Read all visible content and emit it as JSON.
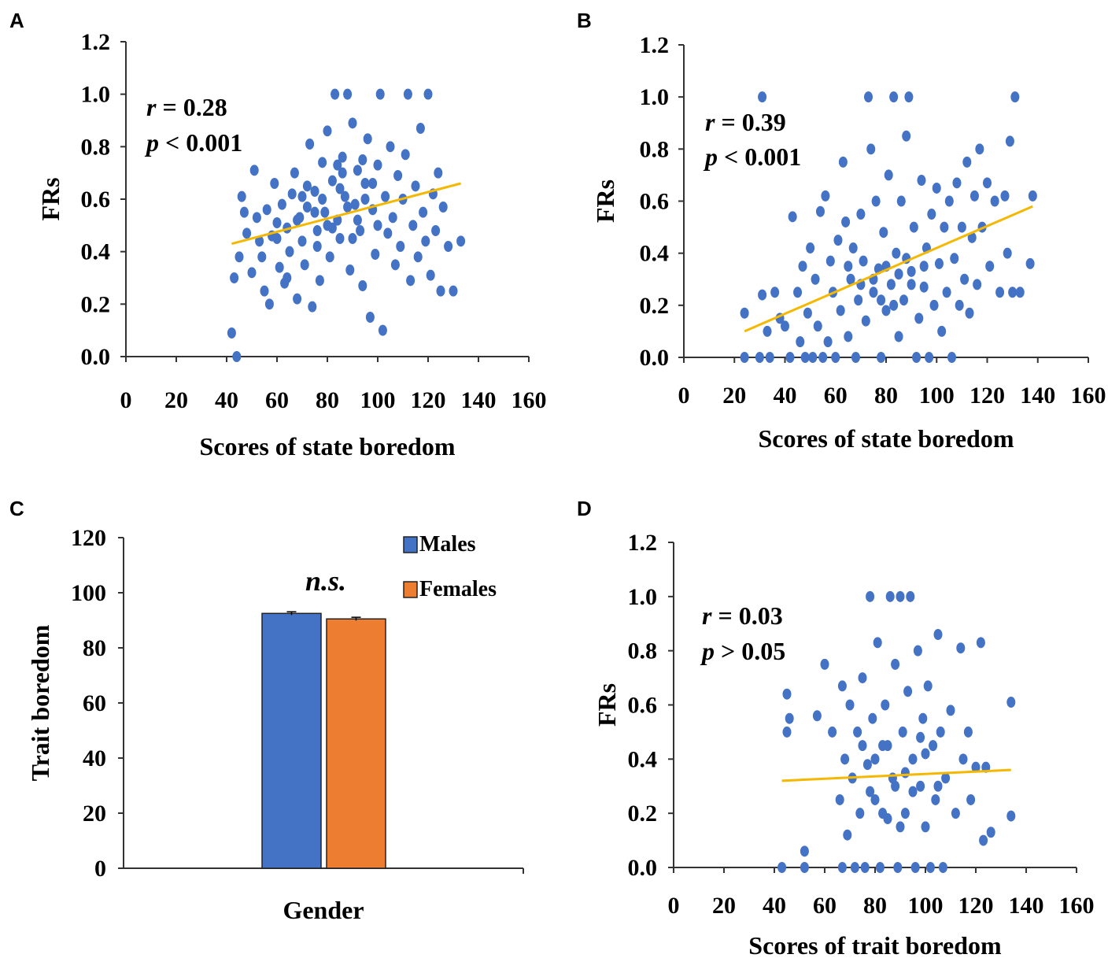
{
  "chart_data": [
    {
      "panel": "A",
      "type": "scatter",
      "xlabel": "Scores of state boredom",
      "ylabel": "FRs",
      "xlim": [
        0,
        160
      ],
      "ylim": [
        0,
        1.2
      ],
      "xticks": [
        "0",
        "20",
        "40",
        "60",
        "80",
        "100",
        "120",
        "140",
        "160"
      ],
      "yticks": [
        "0.0",
        "0.2",
        "0.4",
        "0.6",
        "0.8",
        "1.0",
        "1.2"
      ],
      "stat_r": "= 0.28",
      "stat_p": "< 0.001",
      "trendline": {
        "x": [
          42,
          133
        ],
        "y": [
          0.43,
          0.66
        ]
      },
      "points": [
        [
          42,
          0.09
        ],
        [
          44,
          0.0
        ],
        [
          43,
          0.3
        ],
        [
          45,
          0.38
        ],
        [
          46,
          0.61
        ],
        [
          47,
          0.55
        ],
        [
          48,
          0.47
        ],
        [
          50,
          0.32
        ],
        [
          51,
          0.71
        ],
        [
          52,
          0.53
        ],
        [
          53,
          0.44
        ],
        [
          54,
          0.38
        ],
        [
          55,
          0.25
        ],
        [
          56,
          0.56
        ],
        [
          57,
          0.2
        ],
        [
          58,
          0.46
        ],
        [
          59,
          0.66
        ],
        [
          60,
          0.51
        ],
        [
          61,
          0.34
        ],
        [
          62,
          0.58
        ],
        [
          63,
          0.28
        ],
        [
          64,
          0.49
        ],
        [
          65,
          0.4
        ],
        [
          66,
          0.62
        ],
        [
          67,
          0.7
        ],
        [
          68,
          0.22
        ],
        [
          69,
          0.53
        ],
        [
          70,
          0.44
        ],
        [
          71,
          0.35
        ],
        [
          72,
          0.57
        ],
        [
          73,
          0.81
        ],
        [
          74,
          0.19
        ],
        [
          75,
          0.63
        ],
        [
          76,
          0.48
        ],
        [
          77,
          0.29
        ],
        [
          78,
          0.74
        ],
        [
          79,
          0.55
        ],
        [
          80,
          0.86
        ],
        [
          81,
          0.38
        ],
        [
          82,
          0.67
        ],
        [
          83,
          1.0
        ],
        [
          84,
          0.52
        ],
        [
          85,
          0.45
        ],
        [
          86,
          0.76
        ],
        [
          87,
          0.61
        ],
        [
          88,
          1.0
        ],
        [
          89,
          0.33
        ],
        [
          90,
          0.89
        ],
        [
          91,
          0.58
        ],
        [
          92,
          0.71
        ],
        [
          93,
          0.48
        ],
        [
          94,
          0.27
        ],
        [
          95,
          0.66
        ],
        [
          96,
          0.83
        ],
        [
          97,
          0.15
        ],
        [
          98,
          0.56
        ],
        [
          99,
          0.39
        ],
        [
          100,
          0.73
        ],
        [
          101,
          1.0
        ],
        [
          102,
          0.1
        ],
        [
          103,
          0.61
        ],
        [
          104,
          0.47
        ],
        [
          105,
          0.8
        ],
        [
          106,
          0.53
        ],
        [
          107,
          0.35
        ],
        [
          108,
          0.69
        ],
        [
          109,
          0.42
        ],
        [
          110,
          0.6
        ],
        [
          111,
          0.77
        ],
        [
          112,
          1.0
        ],
        [
          113,
          0.29
        ],
        [
          114,
          0.5
        ],
        [
          115,
          0.65
        ],
        [
          116,
          0.38
        ],
        [
          117,
          0.87
        ],
        [
          118,
          0.55
        ],
        [
          119,
          0.44
        ],
        [
          120,
          1.0
        ],
        [
          121,
          0.31
        ],
        [
          122,
          0.62
        ],
        [
          123,
          0.48
        ],
        [
          124,
          0.7
        ],
        [
          125,
          0.25
        ],
        [
          126,
          0.57
        ],
        [
          128,
          0.42
        ],
        [
          130,
          0.25
        ],
        [
          133,
          0.44
        ],
        [
          70,
          0.61
        ],
        [
          75,
          0.55
        ],
        [
          78,
          0.6
        ],
        [
          82,
          0.49
        ],
        [
          85,
          0.64
        ],
        [
          88,
          0.57
        ],
        [
          92,
          0.52
        ],
        [
          95,
          0.6
        ],
        [
          98,
          0.66
        ],
        [
          86,
          0.7
        ],
        [
          80,
          0.5
        ],
        [
          76,
          0.42
        ],
        [
          72,
          0.65
        ],
        [
          68,
          0.52
        ],
        [
          64,
          0.3
        ],
        [
          60,
          0.45
        ],
        [
          90,
          0.45
        ],
        [
          94,
          0.75
        ],
        [
          84,
          0.73
        ],
        [
          100,
          0.5
        ]
      ]
    },
    {
      "panel": "B",
      "type": "scatter",
      "xlabel": "Scores of state boredom",
      "ylabel": "FRs",
      "xlim": [
        0,
        160
      ],
      "ylim": [
        0,
        1.2
      ],
      "xticks": [
        "0",
        "20",
        "40",
        "60",
        "80",
        "100",
        "120",
        "140",
        "160"
      ],
      "yticks": [
        "0.0",
        "0.2",
        "0.4",
        "0.6",
        "0.8",
        "1.0",
        "1.2"
      ],
      "stat_r": "= 0.39",
      "stat_p": "< 0.001",
      "trendline": {
        "x": [
          24,
          138
        ],
        "y": [
          0.1,
          0.58
        ]
      },
      "points": [
        [
          24,
          0.0
        ],
        [
          24,
          0.17
        ],
        [
          30,
          0.0
        ],
        [
          31,
          1.0
        ],
        [
          31,
          0.24
        ],
        [
          33,
          0.1
        ],
        [
          34,
          0.0
        ],
        [
          36,
          0.25
        ],
        [
          38,
          0.15
        ],
        [
          40,
          0.12
        ],
        [
          42,
          0.0
        ],
        [
          43,
          0.54
        ],
        [
          45,
          0.25
        ],
        [
          46,
          0.06
        ],
        [
          47,
          0.35
        ],
        [
          48,
          0.0
        ],
        [
          49,
          0.17
        ],
        [
          50,
          0.42
        ],
        [
          51,
          0.0
        ],
        [
          52,
          0.3
        ],
        [
          53,
          0.12
        ],
        [
          54,
          0.56
        ],
        [
          55,
          0.0
        ],
        [
          56,
          0.62
        ],
        [
          57,
          0.06
        ],
        [
          58,
          0.37
        ],
        [
          59,
          0.25
        ],
        [
          60,
          0.0
        ],
        [
          61,
          0.45
        ],
        [
          62,
          0.18
        ],
        [
          63,
          0.75
        ],
        [
          64,
          0.52
        ],
        [
          65,
          0.08
        ],
        [
          66,
          0.3
        ],
        [
          67,
          0.42
        ],
        [
          68,
          0.0
        ],
        [
          69,
          0.22
        ],
        [
          70,
          0.55
        ],
        [
          71,
          0.37
        ],
        [
          72,
          0.14
        ],
        [
          73,
          1.0
        ],
        [
          74,
          0.8
        ],
        [
          75,
          0.25
        ],
        [
          76,
          0.6
        ],
        [
          77,
          0.34
        ],
        [
          78,
          0.0
        ],
        [
          79,
          0.48
        ],
        [
          80,
          0.18
        ],
        [
          81,
          0.7
        ],
        [
          82,
          0.28
        ],
        [
          83,
          1.0
        ],
        [
          84,
          0.4
        ],
        [
          85,
          0.08
        ],
        [
          86,
          0.6
        ],
        [
          87,
          0.22
        ],
        [
          88,
          0.85
        ],
        [
          89,
          1.0
        ],
        [
          90,
          0.33
        ],
        [
          91,
          0.5
        ],
        [
          92,
          0.0
        ],
        [
          93,
          0.15
        ],
        [
          94,
          0.68
        ],
        [
          95,
          0.27
        ],
        [
          96,
          0.42
        ],
        [
          97,
          0.0
        ],
        [
          98,
          0.55
        ],
        [
          99,
          0.2
        ],
        [
          100,
          0.65
        ],
        [
          101,
          0.36
        ],
        [
          102,
          0.1
        ],
        [
          103,
          0.5
        ],
        [
          104,
          0.25
        ],
        [
          105,
          0.6
        ],
        [
          106,
          0.0
        ],
        [
          107,
          0.38
        ],
        [
          108,
          0.67
        ],
        [
          109,
          0.2
        ],
        [
          110,
          0.5
        ],
        [
          111,
          0.3
        ],
        [
          112,
          0.75
        ],
        [
          113,
          0.17
        ],
        [
          114,
          0.46
        ],
        [
          115,
          0.62
        ],
        [
          116,
          0.28
        ],
        [
          117,
          0.8
        ],
        [
          118,
          0.5
        ],
        [
          120,
          0.67
        ],
        [
          121,
          0.35
        ],
        [
          123,
          0.6
        ],
        [
          125,
          0.25
        ],
        [
          127,
          0.62
        ],
        [
          128,
          0.4
        ],
        [
          129,
          0.83
        ],
        [
          130,
          0.25
        ],
        [
          131,
          1.0
        ],
        [
          133,
          0.25
        ],
        [
          137,
          0.36
        ],
        [
          138,
          0.62
        ],
        [
          75,
          0.3
        ],
        [
          80,
          0.35
        ],
        [
          85,
          0.32
        ],
        [
          90,
          0.28
        ],
        [
          78,
          0.22
        ],
        [
          83,
          0.2
        ],
        [
          88,
          0.38
        ],
        [
          70,
          0.28
        ],
        [
          95,
          0.35
        ],
        [
          65,
          0.35
        ]
      ]
    },
    {
      "panel": "C",
      "type": "bar",
      "xlabel": "Gender",
      "ylabel": "Trait boredom",
      "ylim": [
        0,
        120
      ],
      "yticks": [
        "0",
        "20",
        "40",
        "60",
        "80",
        "100",
        "120"
      ],
      "annotation": "n.s.",
      "series": [
        {
          "name": "Males",
          "value": 92.5,
          "error": 0.6,
          "color": "#4472C4"
        },
        {
          "name": "Females",
          "value": 90.5,
          "error": 0.6,
          "color": "#ED7D31"
        }
      ]
    },
    {
      "panel": "D",
      "type": "scatter",
      "xlabel": "Scores of trait boredom",
      "ylabel": "FRs",
      "xlim": [
        0,
        160
      ],
      "ylim": [
        0,
        1.2
      ],
      "xticks": [
        "0",
        "20",
        "40",
        "60",
        "80",
        "100",
        "120",
        "140",
        "160"
      ],
      "yticks": [
        "0.0",
        "0.2",
        "0.4",
        "0.6",
        "0.8",
        "1.0",
        "1.2"
      ],
      "stat_r": "= 0.03",
      "stat_p": "> 0.05",
      "trendline": {
        "x": [
          43,
          134
        ],
        "y": [
          0.32,
          0.36
        ]
      },
      "points": [
        [
          43,
          0.0
        ],
        [
          45,
          0.64
        ],
        [
          45,
          0.5
        ],
        [
          46,
          0.55
        ],
        [
          52,
          0.06
        ],
        [
          52,
          0.0
        ],
        [
          57,
          0.56
        ],
        [
          60,
          0.75
        ],
        [
          63,
          0.5
        ],
        [
          66,
          0.25
        ],
        [
          67,
          0.0
        ],
        [
          67,
          0.67
        ],
        [
          68,
          0.4
        ],
        [
          69,
          0.12
        ],
        [
          70,
          0.6
        ],
        [
          71,
          0.33
        ],
        [
          72,
          0.0
        ],
        [
          73,
          0.5
        ],
        [
          74,
          0.2
        ],
        [
          75,
          0.7
        ],
        [
          76,
          0.0
        ],
        [
          77,
          0.38
        ],
        [
          78,
          1.0
        ],
        [
          79,
          0.55
        ],
        [
          80,
          0.25
        ],
        [
          81,
          0.83
        ],
        [
          82,
          0.0
        ],
        [
          83,
          0.45
        ],
        [
          84,
          0.6
        ],
        [
          85,
          0.18
        ],
        [
          86,
          1.0
        ],
        [
          87,
          0.33
        ],
        [
          88,
          0.75
        ],
        [
          89,
          0.0
        ],
        [
          90,
          1.0
        ],
        [
          91,
          0.5
        ],
        [
          92,
          0.2
        ],
        [
          93,
          0.65
        ],
        [
          94,
          1.0
        ],
        [
          95,
          0.4
        ],
        [
          96,
          0.0
        ],
        [
          97,
          0.8
        ],
        [
          98,
          0.3
        ],
        [
          99,
          0.55
        ],
        [
          100,
          0.15
        ],
        [
          101,
          0.67
        ],
        [
          102,
          0.0
        ],
        [
          103,
          0.45
        ],
        [
          104,
          0.25
        ],
        [
          105,
          0.86
        ],
        [
          106,
          0.5
        ],
        [
          107,
          0.0
        ],
        [
          108,
          0.33
        ],
        [
          110,
          0.58
        ],
        [
          112,
          0.2
        ],
        [
          114,
          0.81
        ],
        [
          115,
          0.4
        ],
        [
          117,
          0.5
        ],
        [
          118,
          0.25
        ],
        [
          120,
          0.37
        ],
        [
          122,
          0.83
        ],
        [
          123,
          0.1
        ],
        [
          124,
          0.37
        ],
        [
          126,
          0.13
        ],
        [
          134,
          0.61
        ],
        [
          134,
          0.19
        ],
        [
          80,
          0.4
        ],
        [
          85,
          0.45
        ],
        [
          88,
          0.3
        ],
        [
          92,
          0.35
        ],
        [
          95,
          0.28
        ],
        [
          100,
          0.42
        ],
        [
          78,
          0.28
        ],
        [
          83,
          0.2
        ],
        [
          90,
          0.15
        ],
        [
          98,
          0.48
        ],
        [
          105,
          0.3
        ],
        [
          75,
          0.45
        ]
      ]
    }
  ]
}
